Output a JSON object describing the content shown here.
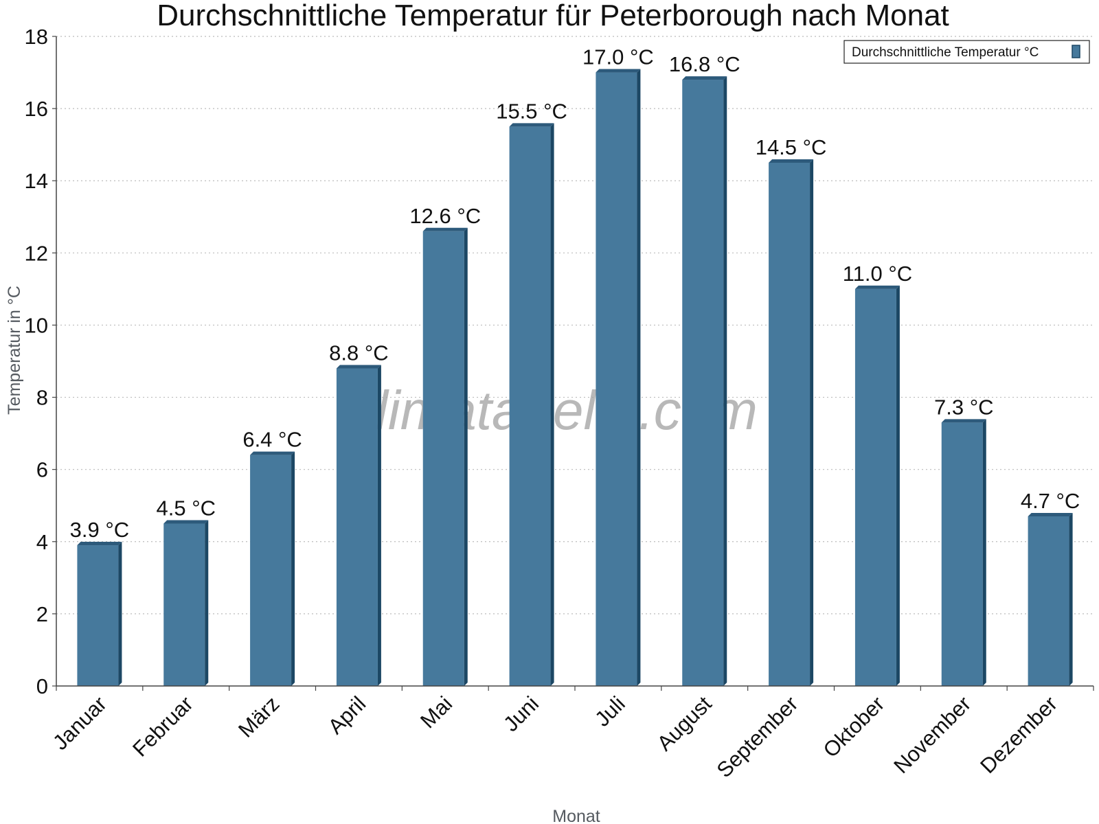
{
  "watermark": "klimatabelle.com",
  "colors": {
    "bar_front": "#46799c",
    "bar_side": "#1c4764",
    "bar_top": "#2d5a7b",
    "grid": "#bbbbbb",
    "axis": "#444444"
  },
  "chart_data": {
    "type": "bar",
    "title": "Durchschnittliche Temperatur für Peterborough nach Monat",
    "xlabel": "Monat",
    "ylabel": "Temperatur in °C",
    "categories": [
      "Januar",
      "Februar",
      "März",
      "April",
      "Mai",
      "Juni",
      "Juli",
      "August",
      "September",
      "Oktober",
      "November",
      "Dezember"
    ],
    "series": [
      {
        "name": "Durchschnittliche Temperatur °C",
        "values": [
          3.9,
          4.5,
          6.4,
          8.8,
          12.6,
          15.5,
          17.0,
          16.8,
          14.5,
          11.0,
          7.3,
          4.7
        ],
        "labels": [
          "3.9 °C",
          "4.5 °C",
          "6.4 °C",
          "8.8 °C",
          "12.6 °C",
          "15.5 °C",
          "17.0 °C",
          "16.8 °C",
          "14.5 °C",
          "11.0 °C",
          "7.3 °C",
          "4.7 °C"
        ]
      }
    ],
    "ylim": [
      0,
      18
    ],
    "yticks": [
      0,
      2,
      4,
      6,
      8,
      10,
      12,
      14,
      16,
      18
    ],
    "grid": true,
    "legend_position": "top-right"
  }
}
